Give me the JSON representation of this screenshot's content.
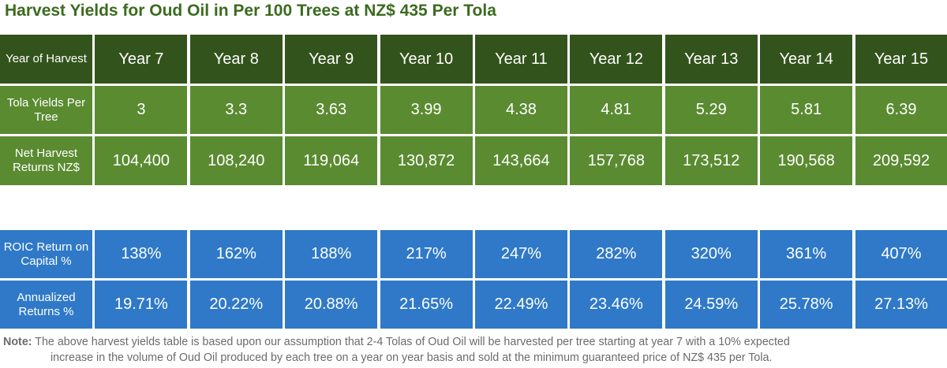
{
  "title": "Harvest Yields for Oud Oil in Per 100 Trees at NZ$ 435 Per Tola",
  "header": {
    "label": "Year of Harvest",
    "years": [
      "Year 7",
      "Year 8",
      "Year 9",
      "Year 10",
      "Year 11",
      "Year 12",
      "Year 13",
      "Year 14",
      "Year 15"
    ]
  },
  "rows_green": [
    {
      "label": "Tola Yields Per Tree",
      "values": [
        "3",
        "3.3",
        "3.63",
        "3.99",
        "4.38",
        "4.81",
        "5.29",
        "5.81",
        "6.39"
      ]
    },
    {
      "label": "Net Harvest Returns NZ$",
      "values": [
        "104,400",
        "108,240",
        "119,064",
        "130,872",
        "143,664",
        "157,768",
        "173,512",
        "190,568",
        "209,592"
      ]
    }
  ],
  "rows_blue": [
    {
      "label": "ROIC Return on Capital %",
      "values": [
        "138%",
        "162%",
        "188%",
        "217%",
        "247%",
        "282%",
        "320%",
        "361%",
        "407%"
      ]
    },
    {
      "label": "Annualized Returns %",
      "values": [
        "19.71%",
        "20.22%",
        "20.88%",
        "21.65%",
        "22.49%",
        "23.46%",
        "24.59%",
        "25.78%",
        "27.13%"
      ]
    }
  ],
  "note": {
    "label": "Note:",
    "line1": "The above harvest yields table is based upon our assumption that 2-4 Tolas of Oud Oil will be harvested per tree starting at year 7 with a 10% expected",
    "line2": "increase in the volume of Oud Oil produced by each tree on a year on year basis and sold at the minimum guaranteed price of NZ$ 435 per Tola."
  },
  "colors": {
    "title": "#3b6b1e",
    "header_bg": "#33531c",
    "green_bg": "#5a8b31",
    "blue_bg": "#2f79c8",
    "note_text": "#6b6b6b"
  }
}
